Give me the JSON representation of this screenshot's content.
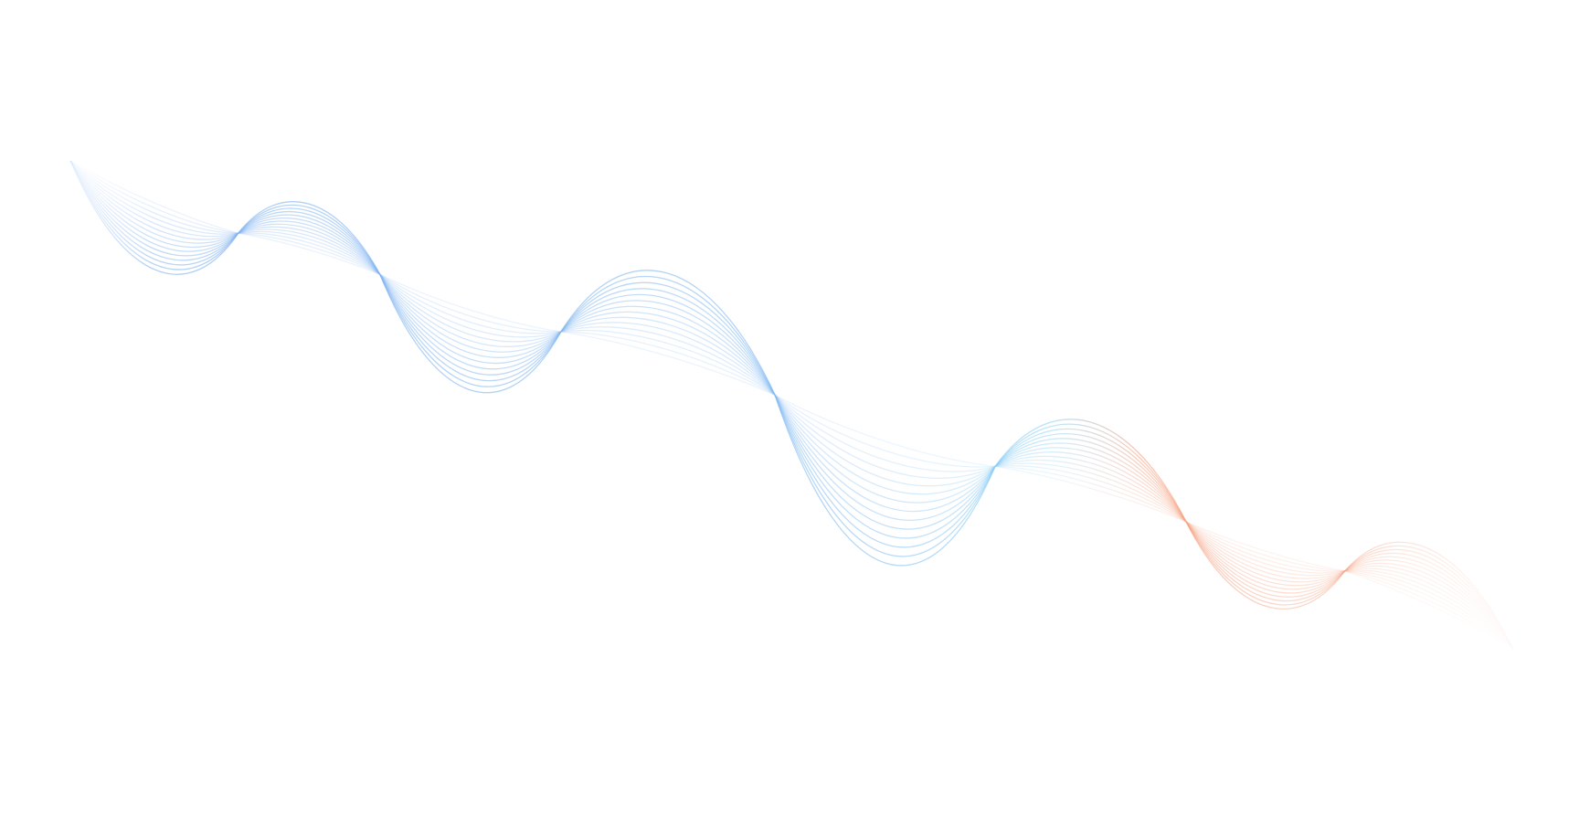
{
  "graphic": {
    "colors": {
      "background": "#ffffff",
      "primary_blue": "#7fb0f0",
      "light_cyan": "#8fd4f5",
      "accent_orange": "#f5a383"
    }
  }
}
